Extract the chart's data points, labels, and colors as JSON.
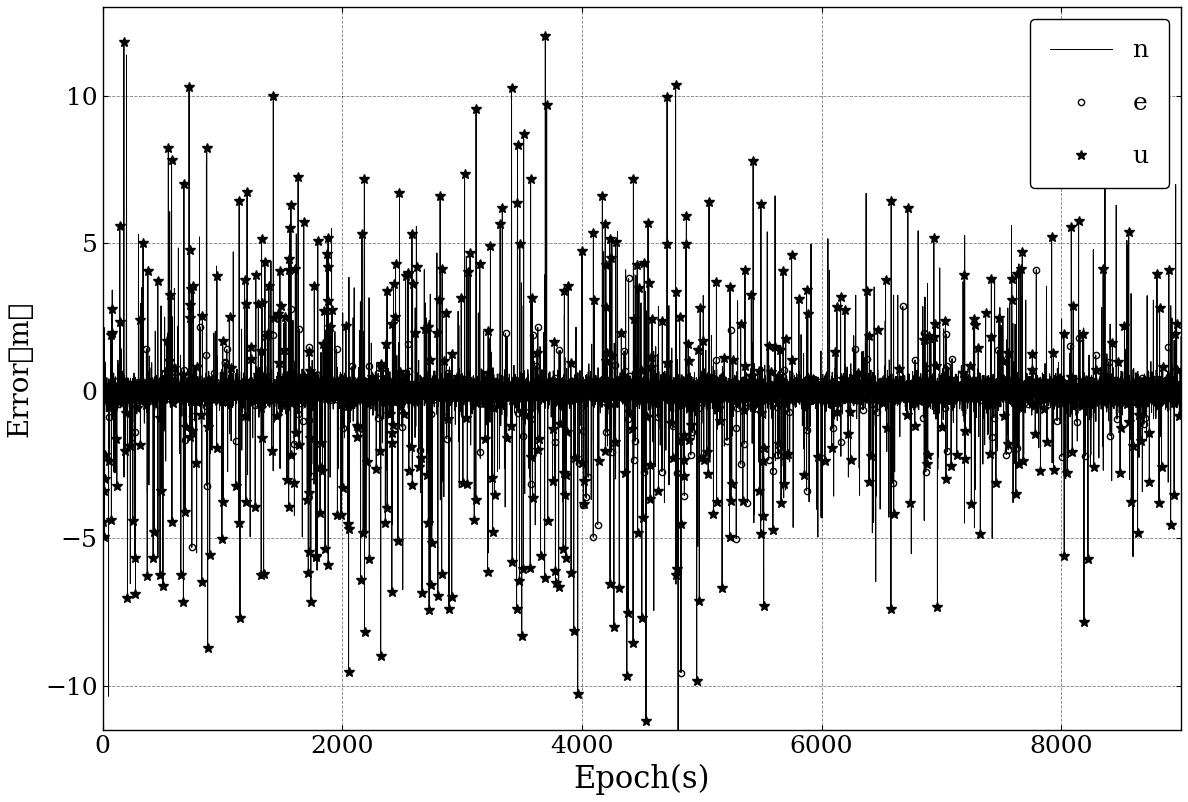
{
  "xlabel": "Epoch(s)",
  "ylabel": "Error（m）",
  "xlim": [
    0,
    9000
  ],
  "ylim": [
    -11.5,
    13
  ],
  "yticks": [
    -10,
    -5,
    0,
    5,
    10
  ],
  "xticks": [
    0,
    2000,
    4000,
    6000,
    8000
  ],
  "n_points": 9000,
  "line_color": "black",
  "background_color": "white",
  "legend_labels": [
    "n",
    "e",
    "u"
  ],
  "xlabel_fontsize": 22,
  "ylabel_fontsize": 20,
  "tick_fontsize": 18,
  "legend_fontsize": 18,
  "seed": 12345
}
